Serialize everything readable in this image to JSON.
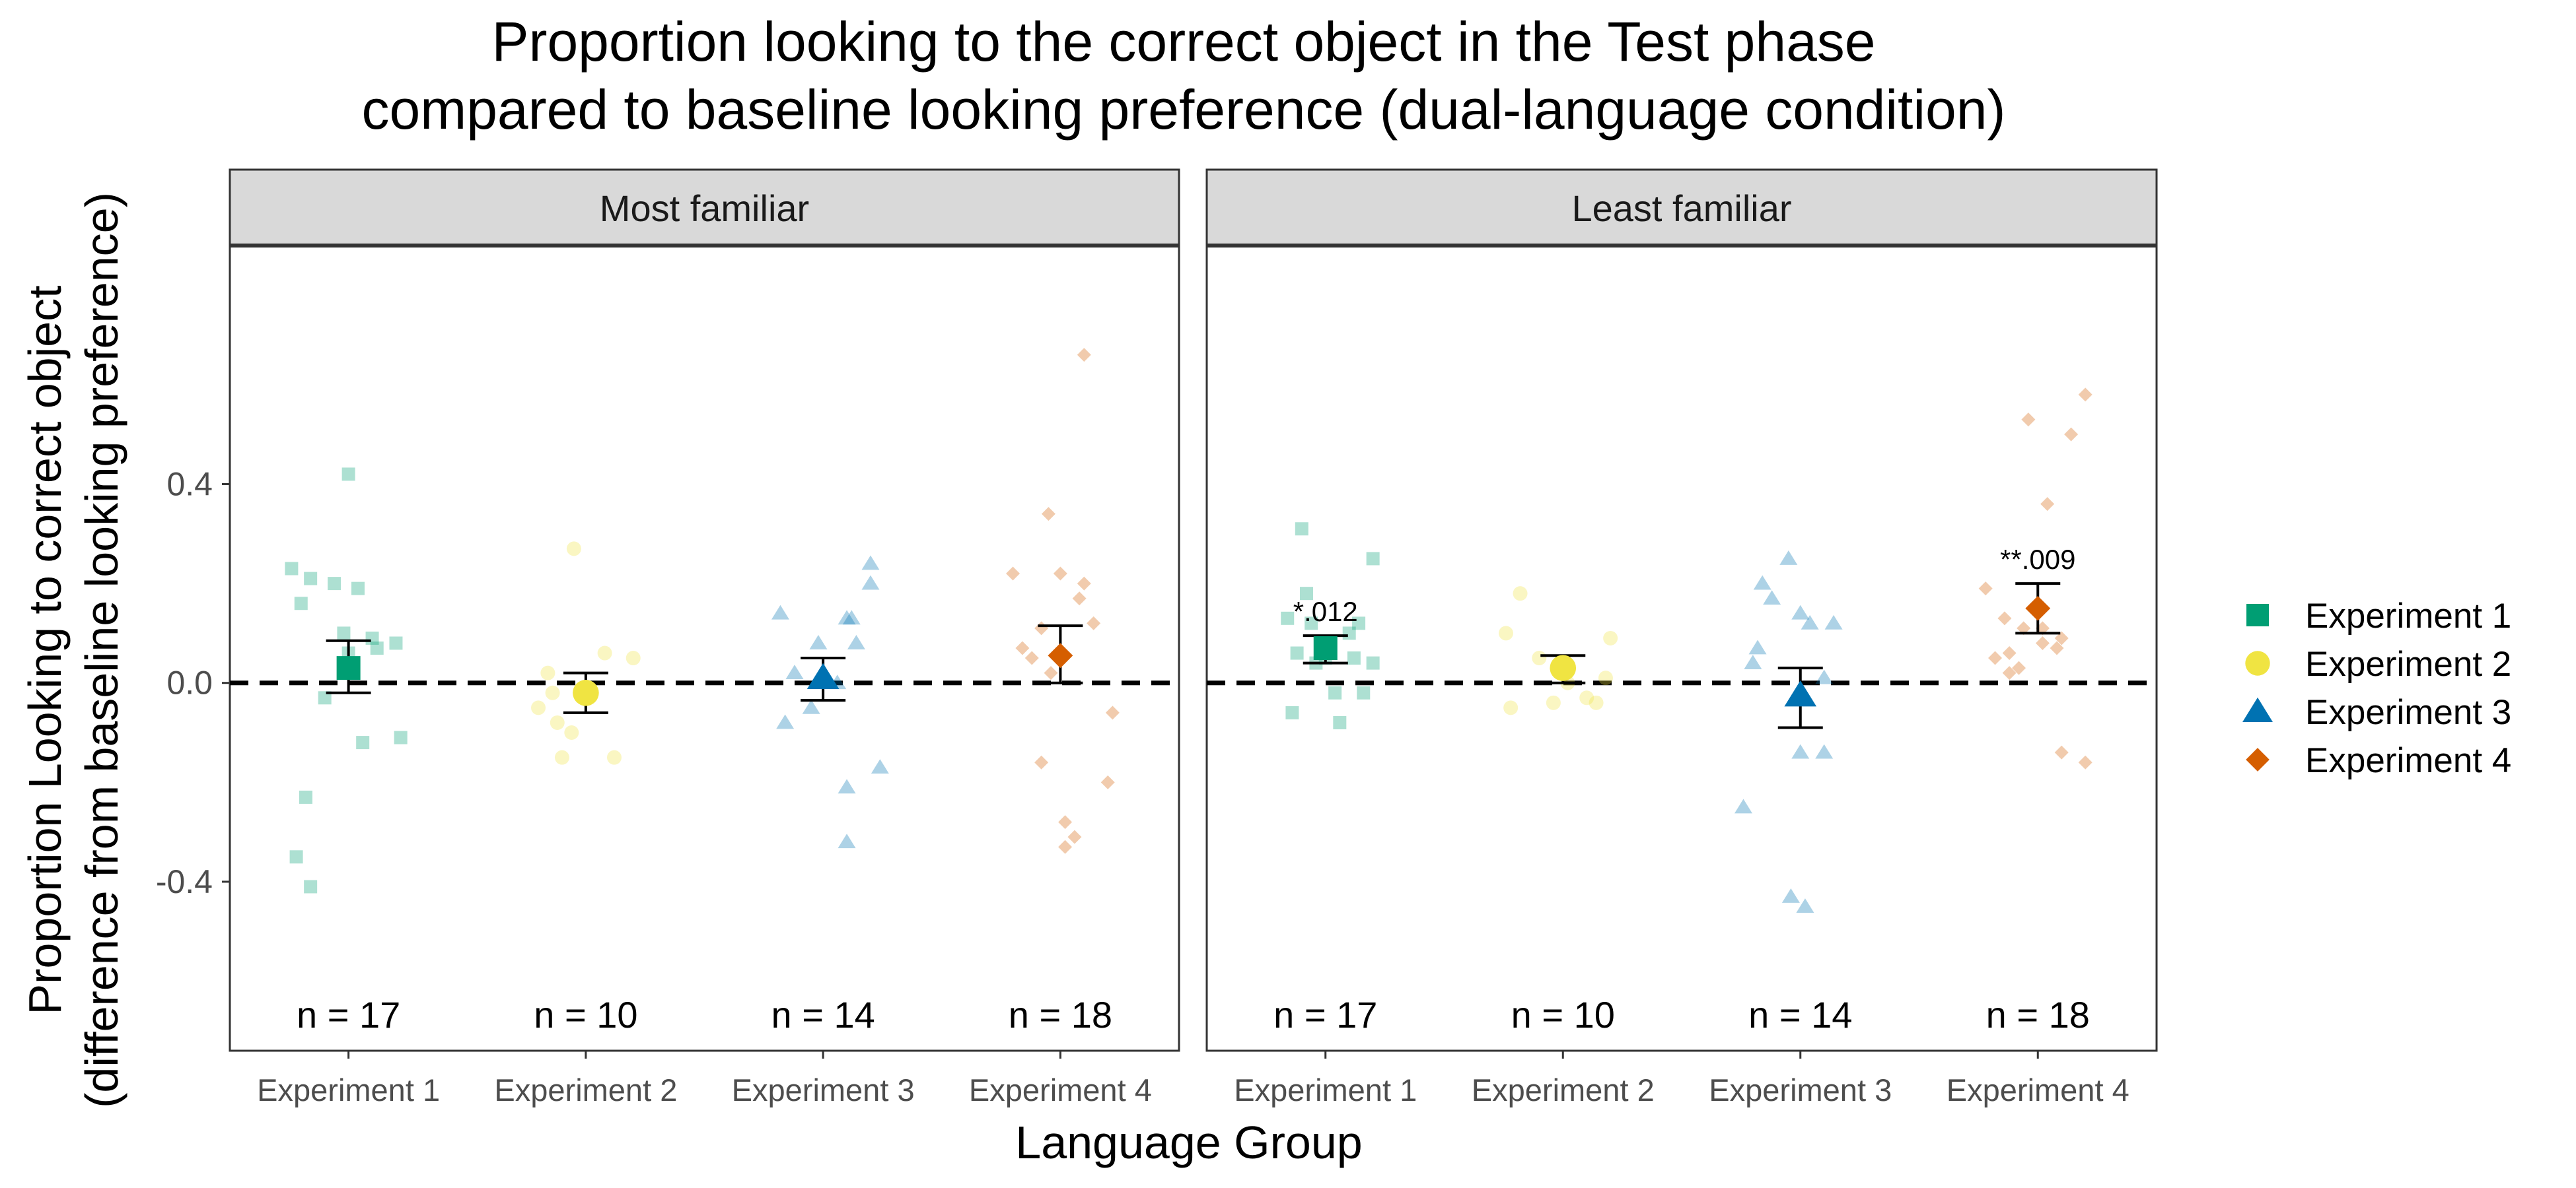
{
  "chart_data": {
    "type": "scatter",
    "title_line1": "Proportion looking to the correct object in the Test phase",
    "title_line2": "compared to baseline looking preference (dual-language condition)",
    "xlabel": "Language Group",
    "ylabel_line1": "Proportion Looking to correct object",
    "ylabel_line2": "(difference from baseline looking preference)",
    "ylim": [
      -0.74,
      0.88
    ],
    "yticks": [
      -0.4,
      0.0,
      0.4
    ],
    "ytick_labels": [
      "-0.4",
      "0.0",
      "0.4"
    ],
    "reference_line": 0.0,
    "grid": false,
    "legend_position": "right",
    "categories": [
      "Experiment 1",
      "Experiment 2",
      "Experiment 3",
      "Experiment 4"
    ],
    "series": [
      {
        "name": "Experiment 1",
        "shape": "square",
        "color": "#009E73"
      },
      {
        "name": "Experiment 2",
        "shape": "circle",
        "color": "#F0E442"
      },
      {
        "name": "Experiment 3",
        "shape": "triangle",
        "color": "#0072B2"
      },
      {
        "name": "Experiment 4",
        "shape": "diamond",
        "color": "#D55E00"
      }
    ],
    "panels": [
      {
        "title": "Most familiar",
        "groups": [
          {
            "category": "Experiment 1",
            "n_label": "n = 17",
            "mean": 0.03,
            "ci": [
              -0.02,
              0.085
            ],
            "annotation": "",
            "points": [
              [
                -0.24,
                0.23
              ],
              [
                -0.2,
                0.16
              ],
              [
                -0.16,
                0.21
              ],
              [
                -0.1,
                -0.03
              ],
              [
                -0.06,
                0.2
              ],
              [
                -0.02,
                0.1
              ],
              [
                0.0,
                0.06
              ],
              [
                0.04,
                0.19
              ],
              [
                0.06,
                -0.12
              ],
              [
                0.12,
                0.07
              ],
              [
                0.22,
                -0.11
              ],
              [
                0.2,
                0.08
              ],
              [
                0.0,
                0.42
              ],
              [
                -0.22,
                -0.35
              ],
              [
                -0.16,
                -0.41
              ],
              [
                -0.18,
                -0.23
              ],
              [
                0.1,
                0.09
              ]
            ]
          },
          {
            "category": "Experiment 2",
            "n_label": "n = 10",
            "mean": -0.02,
            "ci": [
              -0.06,
              0.02
            ],
            "annotation": "",
            "points": [
              [
                -0.2,
                -0.05
              ],
              [
                -0.16,
                0.02
              ],
              [
                -0.12,
                -0.08
              ],
              [
                -0.1,
                -0.15
              ],
              [
                -0.06,
                -0.1
              ],
              [
                -0.05,
                0.27
              ],
              [
                0.08,
                0.06
              ],
              [
                0.12,
                -0.15
              ],
              [
                0.2,
                0.05
              ],
              [
                -0.14,
                -0.02
              ]
            ]
          },
          {
            "category": "Experiment 3",
            "n_label": "n = 14",
            "mean": 0.01,
            "ci": [
              -0.035,
              0.05
            ],
            "annotation": "",
            "points": [
              [
                -0.18,
                0.14
              ],
              [
                -0.16,
                -0.08
              ],
              [
                -0.05,
                -0.05
              ],
              [
                -0.02,
                0.08
              ],
              [
                0.1,
                0.13
              ],
              [
                0.12,
                0.13
              ],
              [
                0.2,
                0.2
              ],
              [
                0.2,
                0.24
              ],
              [
                0.24,
                -0.17
              ],
              [
                0.1,
                -0.21
              ],
              [
                0.1,
                -0.32
              ],
              [
                0.14,
                0.08
              ],
              [
                -0.12,
                0.02
              ],
              [
                0.06,
                0.0
              ]
            ]
          },
          {
            "category": "Experiment 4",
            "n_label": "n = 18",
            "mean": 0.055,
            "ci": [
              0.0,
              0.115
            ],
            "annotation": "",
            "points": [
              [
                -0.2,
                0.22
              ],
              [
                -0.16,
                0.07
              ],
              [
                -0.12,
                0.05
              ],
              [
                -0.08,
                0.11
              ],
              [
                -0.05,
                0.34
              ],
              [
                0.0,
                0.22
              ],
              [
                0.0,
                0.05
              ],
              [
                0.08,
                0.17
              ],
              [
                0.1,
                0.2
              ],
              [
                0.14,
                0.12
              ],
              [
                0.22,
                -0.06
              ],
              [
                0.2,
                -0.2
              ],
              [
                -0.08,
                -0.16
              ],
              [
                0.02,
                -0.28
              ],
              [
                0.06,
                -0.31
              ],
              [
                0.02,
                -0.33
              ],
              [
                0.1,
                0.66
              ],
              [
                -0.04,
                0.02
              ]
            ]
          }
        ]
      },
      {
        "title": "Least familiar",
        "groups": [
          {
            "category": "Experiment 1",
            "n_label": "n = 17",
            "mean": 0.07,
            "ci": [
              0.04,
              0.095
            ],
            "annotation": "*.012",
            "points": [
              [
                -0.16,
                0.13
              ],
              [
                -0.14,
                -0.06
              ],
              [
                -0.1,
                0.31
              ],
              [
                -0.06,
                0.12
              ],
              [
                -0.04,
                0.04
              ],
              [
                -0.02,
                0.07
              ],
              [
                0.0,
                0.05
              ],
              [
                0.04,
                -0.02
              ],
              [
                0.06,
                -0.08
              ],
              [
                0.1,
                0.1
              ],
              [
                0.14,
                0.12
              ],
              [
                0.16,
                -0.02
              ],
              [
                0.2,
                0.25
              ],
              [
                0.2,
                0.04
              ],
              [
                0.12,
                0.05
              ],
              [
                -0.08,
                0.18
              ],
              [
                -0.12,
                0.06
              ]
            ]
          },
          {
            "category": "Experiment 2",
            "n_label": "n = 10",
            "mean": 0.03,
            "ci": [
              0.0,
              0.055
            ],
            "annotation": "",
            "points": [
              [
                -0.24,
                0.1
              ],
              [
                -0.22,
                -0.05
              ],
              [
                -0.18,
                0.18
              ],
              [
                -0.1,
                0.05
              ],
              [
                -0.04,
                -0.04
              ],
              [
                0.02,
                0.0
              ],
              [
                0.1,
                -0.03
              ],
              [
                0.14,
                -0.04
              ],
              [
                0.18,
                0.01
              ],
              [
                0.2,
                0.09
              ]
            ]
          },
          {
            "category": "Experiment 3",
            "n_label": "n = 14",
            "mean": -0.025,
            "ci": [
              -0.09,
              0.03
            ],
            "annotation": "",
            "points": [
              [
                -0.2,
                0.04
              ],
              [
                -0.18,
                0.07
              ],
              [
                -0.16,
                0.2
              ],
              [
                -0.12,
                0.17
              ],
              [
                -0.05,
                0.25
              ],
              [
                0.0,
                0.14
              ],
              [
                0.04,
                0.12
              ],
              [
                0.1,
                0.01
              ],
              [
                0.0,
                -0.14
              ],
              [
                0.1,
                -0.14
              ],
              [
                -0.24,
                -0.25
              ],
              [
                -0.04,
                -0.43
              ],
              [
                0.02,
                -0.45
              ],
              [
                0.14,
                0.12
              ]
            ]
          },
          {
            "category": "Experiment 4",
            "n_label": "n = 18",
            "mean": 0.15,
            "ci": [
              0.1,
              0.2
            ],
            "annotation": "**.009",
            "points": [
              [
                -0.22,
                0.19
              ],
              [
                -0.18,
                0.05
              ],
              [
                -0.12,
                0.06
              ],
              [
                -0.08,
                0.03
              ],
              [
                -0.06,
                0.11
              ],
              [
                0.0,
                0.16
              ],
              [
                0.02,
                0.08
              ],
              [
                0.04,
                0.36
              ],
              [
                0.08,
                0.07
              ],
              [
                0.1,
                0.09
              ],
              [
                0.14,
                0.5
              ],
              [
                0.2,
                0.58
              ],
              [
                0.1,
                -0.14
              ],
              [
                0.2,
                -0.16
              ],
              [
                -0.12,
                0.02
              ],
              [
                -0.14,
                0.13
              ],
              [
                0.02,
                0.11
              ],
              [
                -0.04,
                0.53
              ]
            ]
          }
        ]
      }
    ]
  }
}
